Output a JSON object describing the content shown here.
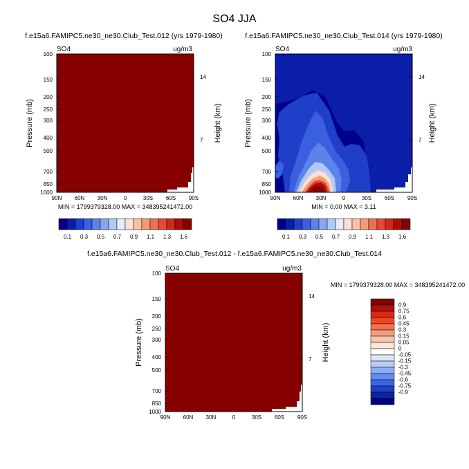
{
  "page": {
    "title": "SO4 JJA"
  },
  "colormaps": {
    "abs": [
      "#00008C",
      "#0A1EA8",
      "#1F3FC8",
      "#3A60E0",
      "#5C82EC",
      "#86A6F2",
      "#B4C8F6",
      "#E4ECFA",
      "#FCE0D0",
      "#F8C0A4",
      "#F49A78",
      "#F07050",
      "#E8482E",
      "#D02818",
      "#A80E0A",
      "#870000"
    ],
    "diff": [
      "#870000",
      "#B0100A",
      "#D42A18",
      "#EC4826",
      "#F27252",
      "#F49C7E",
      "#F8C4AC",
      "#FCE4D6",
      "#FFFFFF",
      "#DCE6FA",
      "#B8CCF6",
      "#8EAEF2",
      "#648CEC",
      "#3C66E0",
      "#1E40C4",
      "#0A22A8",
      "#00008C"
    ]
  },
  "chart_data": [
    {
      "type": "heatmap",
      "id": "panel1",
      "title": "f.e15a6.FAMIPC5.ne30_ne30.Club_Test.012 (yrs 1979-1980)",
      "field_label": "SO4",
      "units": "ug/m3",
      "ylabel": "Pressure (mb)",
      "ylabel_right": "Height (km)",
      "xticks": [
        "90N",
        "60N",
        "30N",
        "0",
        "30S",
        "60S",
        "90S"
      ],
      "yticks": [
        "100",
        "150",
        "200",
        "250",
        "300",
        "400",
        "500",
        "700",
        "850",
        "1000"
      ],
      "yticks_right": [
        "14",
        "7"
      ],
      "stats": "MIN = 1799379328.00   MAX = 348395241472.00",
      "fill": "saturated-max"
    },
    {
      "type": "heatmap",
      "id": "panel2",
      "title": "f.e15a6.FAMIPC5.ne30_ne30.Club_Test.014 (yrs 1979-1980)",
      "field_label": "SO4",
      "units": "ug/m3",
      "ylabel": "Pressure (mb)",
      "ylabel_right": "Height (km)",
      "xticks": [
        "90N",
        "60N",
        "30N",
        "0",
        "30S",
        "60S",
        "90S"
      ],
      "yticks": [
        "100",
        "150",
        "200",
        "250",
        "300",
        "400",
        "500",
        "700",
        "850",
        "1000"
      ],
      "yticks_right": [
        "14",
        "7"
      ],
      "stats": "MIN =  0.00   MAX =  3.11",
      "min": 0.0,
      "max": 3.11
    },
    {
      "type": "heatmap",
      "id": "panel3",
      "title": "f.e15a6.FAMIPC5.ne30_ne30.Club_Test.012 - f.e15a6.FAMIPC5.ne30_ne30.Club_Test.014",
      "field_label": "SO4",
      "units": "ug/m3",
      "ylabel": "Pressure (mb)",
      "ylabel_right": "Height (km)",
      "xticks": [
        "90N",
        "60N",
        "30N",
        "0",
        "30S",
        "60S",
        "90S"
      ],
      "yticks": [
        "100",
        "150",
        "200",
        "250",
        "300",
        "400",
        "500",
        "700",
        "850",
        "1000"
      ],
      "yticks_right": [
        "14",
        "7"
      ],
      "stats": "MIN = 1799379328.00  MAX = 348395241472.00",
      "fill": "saturated-max"
    }
  ],
  "colorbars": {
    "abs_labels": [
      "0.1",
      "0.3",
      "0.5",
      "0.7",
      "0.9",
      "1.1",
      "1.3",
      "1.6"
    ],
    "diff_labels": [
      "0.9",
      "0.75",
      "0.6",
      "0.45",
      "0.3",
      "0.15",
      "0.05",
      "0",
      "-0.05",
      "-0.15",
      "-0.3",
      "-0.45",
      "-0.6",
      "-0.75",
      "-0.9"
    ]
  }
}
